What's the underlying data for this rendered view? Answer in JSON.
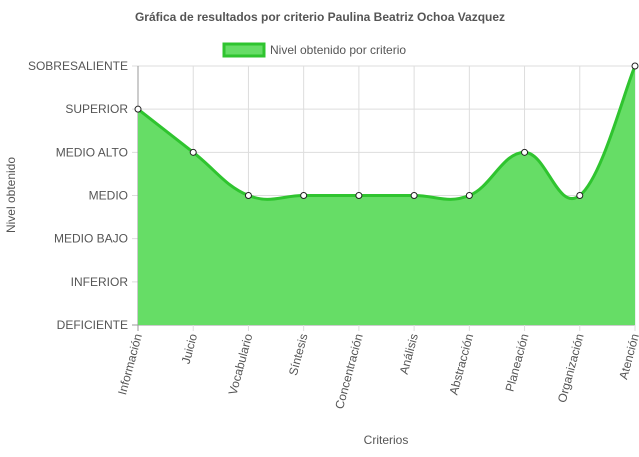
{
  "chart_data": {
    "type": "area",
    "title": "Gráfica de resultados por criterio Paulina Beatriz Ochoa Vazquez",
    "xlabel": "Criterios",
    "ylabel": "Nivel obtenido",
    "legend": {
      "position": "top",
      "label": "Nivel obtenido por criterio"
    },
    "y_levels": [
      "DEFICIENTE",
      "INFERIOR",
      "MEDIO BAJO",
      "MEDIO",
      "MEDIO ALTO",
      "SUPERIOR",
      "SOBRESALIENTE"
    ],
    "ylim": [
      0,
      6
    ],
    "grid": true,
    "categories": [
      "Información",
      "Juicio",
      "Vocabulario",
      "Síntesis",
      "Concentración",
      "Análisis",
      "Abstracción",
      "Planeación",
      "Organización",
      "Atención"
    ],
    "series": [
      {
        "name": "Nivel obtenido por criterio",
        "values": [
          5,
          4,
          3,
          3,
          3,
          3,
          3,
          4,
          3,
          6
        ]
      }
    ],
    "colors": {
      "fill": "#66dd66",
      "line": "#2fc42f",
      "point_fill": "#ffffff",
      "point_stroke": "#222222",
      "grid": "#dddddd",
      "axis": "#999999",
      "text": "#555555"
    }
  }
}
